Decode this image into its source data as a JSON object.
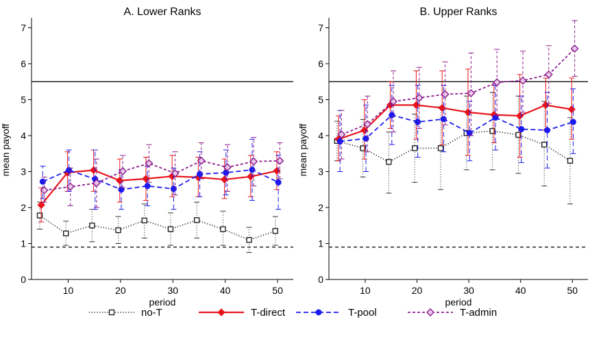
{
  "chart_data": [
    {
      "type": "line",
      "title": "A. Lower Ranks",
      "xlabel": "period",
      "ylabel": "mean payoff",
      "xlim": [
        3,
        53
      ],
      "ylim": [
        0,
        7.2
      ],
      "xticks": [
        10,
        20,
        30,
        40,
        50
      ],
      "yticks": [
        0,
        1,
        2,
        3,
        4,
        5,
        6,
        7
      ],
      "grid": false,
      "x": [
        5,
        10,
        15,
        20,
        25,
        30,
        35,
        40,
        45,
        50
      ],
      "reference_lines": [
        {
          "y": 5.5,
          "style": "solid"
        },
        {
          "y": 0.9,
          "style": "dashed"
        }
      ],
      "series": [
        {
          "name": "no-T",
          "values": [
            1.78,
            1.28,
            1.5,
            1.37,
            1.64,
            1.4,
            1.65,
            1.4,
            1.1,
            1.35
          ],
          "err_low": [
            1.4,
            0.95,
            1.05,
            1.0,
            1.15,
            0.95,
            1.15,
            0.95,
            0.75,
            0.95
          ],
          "err_high": [
            2.15,
            1.62,
            1.95,
            1.75,
            2.1,
            1.85,
            2.15,
            1.9,
            1.45,
            1.75
          ]
        },
        {
          "name": "T-direct",
          "values": [
            2.07,
            2.97,
            3.04,
            2.75,
            2.8,
            2.87,
            2.84,
            2.78,
            2.86,
            3.02
          ],
          "err_low": [
            1.6,
            2.45,
            2.45,
            2.15,
            2.2,
            2.3,
            2.3,
            2.25,
            2.3,
            2.5
          ],
          "err_high": [
            2.55,
            3.55,
            3.6,
            3.35,
            3.4,
            3.45,
            3.4,
            3.35,
            3.45,
            3.55
          ]
        },
        {
          "name": "T-pool",
          "values": [
            2.72,
            3.04,
            2.79,
            2.5,
            2.6,
            2.52,
            2.93,
            2.97,
            3.05,
            2.7
          ],
          "err_low": [
            2.25,
            2.45,
            1.95,
            1.95,
            2.05,
            1.95,
            2.3,
            2.35,
            2.2,
            1.95
          ],
          "err_high": [
            3.15,
            3.6,
            3.6,
            3.05,
            3.15,
            3.1,
            3.55,
            3.6,
            3.9,
            3.45
          ]
        },
        {
          "name": "T-admin",
          "values": [
            2.48,
            2.58,
            2.68,
            3.01,
            3.23,
            2.95,
            3.3,
            3.12,
            3.28,
            3.3
          ],
          "err_low": [
            2.15,
            2.05,
            2.0,
            2.55,
            2.7,
            2.35,
            2.8,
            2.45,
            2.6,
            2.8
          ],
          "err_high": [
            2.85,
            3.1,
            3.35,
            3.45,
            3.75,
            3.55,
            3.8,
            3.75,
            3.95,
            3.8
          ]
        }
      ]
    },
    {
      "type": "line",
      "title": "B. Upper Ranks",
      "xlabel": "period",
      "ylabel": "mean payoff",
      "xlim": [
        3,
        53
      ],
      "ylim": [
        0,
        7.2
      ],
      "xticks": [
        10,
        20,
        30,
        40,
        50
      ],
      "yticks": [
        0,
        1,
        2,
        3,
        4,
        5,
        6,
        7
      ],
      "grid": false,
      "x": [
        5,
        10,
        15,
        20,
        25,
        30,
        35,
        40,
        45,
        50
      ],
      "reference_lines": [
        {
          "y": 5.5,
          "style": "solid"
        },
        {
          "y": 0.9,
          "style": "dashed"
        }
      ],
      "series": [
        {
          "name": "no-T",
          "values": [
            3.85,
            3.65,
            3.27,
            3.65,
            3.65,
            4.07,
            4.13,
            4.02,
            3.75,
            3.3
          ],
          "err_low": [
            3.3,
            2.85,
            2.4,
            2.7,
            2.5,
            3.05,
            3.05,
            2.95,
            2.6,
            2.1
          ],
          "err_high": [
            4.4,
            4.45,
            4.1,
            4.6,
            4.8,
            5.1,
            5.2,
            5.1,
            4.95,
            4.5
          ]
        },
        {
          "name": "T-direct",
          "values": [
            3.9,
            4.15,
            4.85,
            4.85,
            4.77,
            4.65,
            4.58,
            4.55,
            4.85,
            4.73
          ],
          "err_low": [
            3.3,
            3.35,
            4.2,
            3.9,
            3.75,
            3.45,
            3.8,
            3.4,
            4.15,
            3.9
          ],
          "err_high": [
            4.55,
            5.0,
            5.5,
            5.8,
            5.8,
            5.85,
            5.4,
            5.7,
            5.6,
            5.6
          ]
        },
        {
          "name": "T-pool",
          "values": [
            3.84,
            3.92,
            4.57,
            4.38,
            4.46,
            4.07,
            4.5,
            4.18,
            4.15,
            4.38
          ],
          "err_low": [
            3.0,
            3.0,
            3.75,
            3.4,
            3.55,
            3.3,
            3.6,
            3.25,
            3.1,
            3.5
          ],
          "err_high": [
            4.7,
            4.85,
            5.4,
            5.4,
            5.4,
            4.95,
            5.4,
            5.1,
            5.2,
            5.3
          ]
        },
        {
          "name": "T-admin",
          "values": [
            4.03,
            4.32,
            4.95,
            5.05,
            5.15,
            5.18,
            5.48,
            5.53,
            5.7,
            6.42
          ],
          "err_low": [
            3.35,
            3.55,
            4.1,
            4.2,
            4.3,
            4.0,
            4.55,
            4.65,
            4.9,
            5.65
          ],
          "err_high": [
            4.7,
            5.1,
            5.8,
            5.9,
            6.05,
            6.3,
            6.4,
            6.35,
            6.5,
            7.2
          ]
        }
      ]
    }
  ],
  "legend": {
    "placement": "bottom",
    "items": [
      {
        "label": "no-T",
        "color": "#333333",
        "line": "dotted",
        "marker": "square-open"
      },
      {
        "label": "T-direct",
        "color": "#e8141b",
        "line": "solid",
        "marker": "diamond-filled"
      },
      {
        "label": "T-pool",
        "color": "#1a1aee",
        "line": "dashed",
        "marker": "circle-filled"
      },
      {
        "label": "T-admin",
        "color": "#8b1a8b",
        "line": "shortdash",
        "marker": "diamond-open"
      }
    ]
  }
}
